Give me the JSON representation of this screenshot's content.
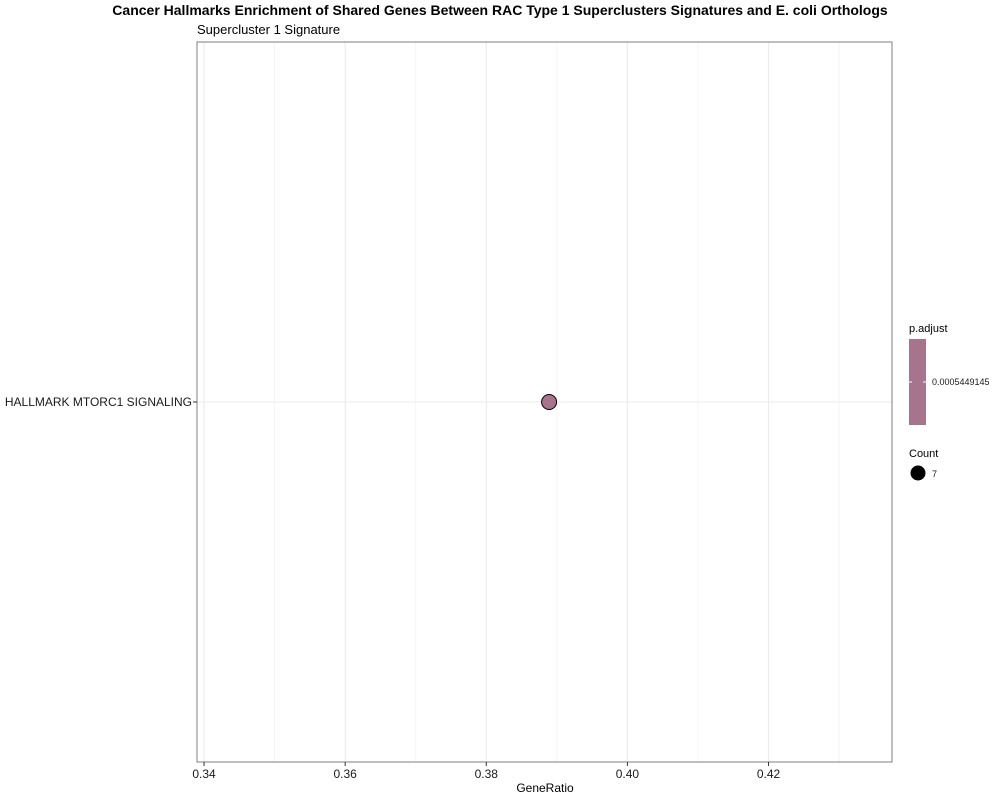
{
  "chart_data": {
    "type": "scatter",
    "title": "Cancer Hallmarks Enrichment of Shared Genes Between RAC Type 1 Superclusters Signatures and E. coli Orthologs",
    "subtitle": "Supercluster 1 Signature",
    "xlabel": "GeneRatio",
    "ylabel": "",
    "xlim": [
      0.339,
      0.4375
    ],
    "x_ticks": [
      "0.34",
      "0.36",
      "0.38",
      "0.40",
      "0.42"
    ],
    "x_tick_values": [
      0.34,
      0.36,
      0.38,
      0.4,
      0.42
    ],
    "categories": [
      "HALLMARK MTORC1 SIGNALING"
    ],
    "points": [
      {
        "category": "HALLMARK MTORC1 SIGNALING",
        "x": 0.3889,
        "count": 7,
        "p_adjust": 0.0005449145
      }
    ],
    "grid": true,
    "point_color": "#a6758d",
    "legend": {
      "placement": "right",
      "color_title": "p.adjust",
      "color_label": "0.0005449145",
      "size_title": "Count",
      "size_label": "7"
    }
  }
}
